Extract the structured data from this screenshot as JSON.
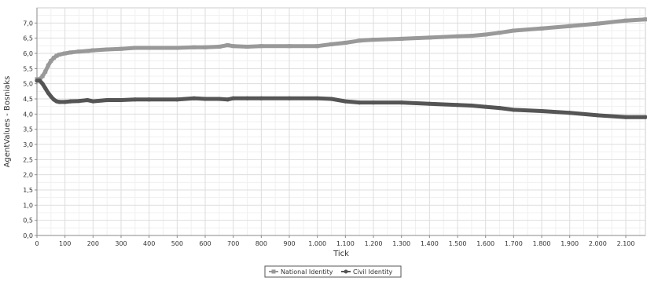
{
  "chart_data": {
    "type": "line",
    "title": "",
    "xlabel": "Tick",
    "ylabel": "AgentValues - Bosniaks",
    "xlim": [
      0,
      2170
    ],
    "ylim": [
      0,
      7.5
    ],
    "grid": true,
    "legend_position": "bottom",
    "x_ticks": [
      0,
      100,
      200,
      300,
      400,
      500,
      600,
      700,
      800,
      900,
      1000,
      1100,
      1200,
      1300,
      1400,
      1500,
      1600,
      1700,
      1800,
      1900,
      2000,
      2100
    ],
    "x_tick_labels": [
      "0",
      "100",
      "200",
      "300",
      "400",
      "500",
      "600",
      "700",
      "800",
      "900",
      "1.000",
      "1.100",
      "1.200",
      "1.300",
      "1.400",
      "1.500",
      "1.600",
      "1.700",
      "1.800",
      "1.900",
      "2.000",
      "2.100"
    ],
    "y_ticks": [
      0,
      0.5,
      1,
      1.5,
      2,
      2.5,
      3,
      3.5,
      4,
      4.5,
      5,
      5.5,
      6,
      6.5,
      7
    ],
    "y_tick_labels": [
      "0,0",
      "0,5",
      "1,0",
      "1,5",
      "2,0",
      "2,5",
      "3,0",
      "3,5",
      "4,0",
      "4,5",
      "5,0",
      "5,5",
      "6,0",
      "6,5",
      "7,0"
    ],
    "series": [
      {
        "name": "National Identity",
        "color": "#999999",
        "x": [
          0,
          10,
          20,
          30,
          40,
          50,
          60,
          70,
          80,
          100,
          120,
          150,
          180,
          200,
          250,
          300,
          350,
          400,
          500,
          560,
          600,
          650,
          680,
          700,
          750,
          800,
          900,
          1000,
          1050,
          1100,
          1150,
          1200,
          1300,
          1400,
          1500,
          1550,
          1600,
          1650,
          1700,
          1800,
          1900,
          2000,
          2100,
          2170
        ],
        "values": [
          5.15,
          5.15,
          5.25,
          5.4,
          5.6,
          5.75,
          5.85,
          5.92,
          5.96,
          6.0,
          6.03,
          6.06,
          6.08,
          6.1,
          6.13,
          6.15,
          6.18,
          6.18,
          6.18,
          6.2,
          6.2,
          6.22,
          6.27,
          6.24,
          6.22,
          6.24,
          6.24,
          6.24,
          6.3,
          6.35,
          6.42,
          6.45,
          6.48,
          6.52,
          6.56,
          6.58,
          6.62,
          6.68,
          6.75,
          6.82,
          6.9,
          6.98,
          7.08,
          7.12
        ]
      },
      {
        "name": "Civil Identity",
        "color": "#555555",
        "x": [
          0,
          10,
          20,
          30,
          40,
          50,
          60,
          70,
          80,
          100,
          120,
          150,
          180,
          200,
          250,
          300,
          350,
          400,
          500,
          560,
          600,
          650,
          680,
          700,
          750,
          800,
          900,
          1000,
          1050,
          1100,
          1150,
          1200,
          1300,
          1400,
          1500,
          1550,
          1600,
          1650,
          1700,
          1800,
          1900,
          2000,
          2100,
          2170
        ],
        "values": [
          5.1,
          5.1,
          5.0,
          4.85,
          4.7,
          4.58,
          4.48,
          4.42,
          4.4,
          4.4,
          4.42,
          4.43,
          4.46,
          4.42,
          4.46,
          4.46,
          4.48,
          4.48,
          4.48,
          4.52,
          4.5,
          4.5,
          4.48,
          4.52,
          4.52,
          4.52,
          4.52,
          4.52,
          4.5,
          4.42,
          4.38,
          4.38,
          4.38,
          4.34,
          4.3,
          4.28,
          4.24,
          4.2,
          4.14,
          4.1,
          4.04,
          3.96,
          3.9,
          3.9
        ]
      }
    ]
  }
}
